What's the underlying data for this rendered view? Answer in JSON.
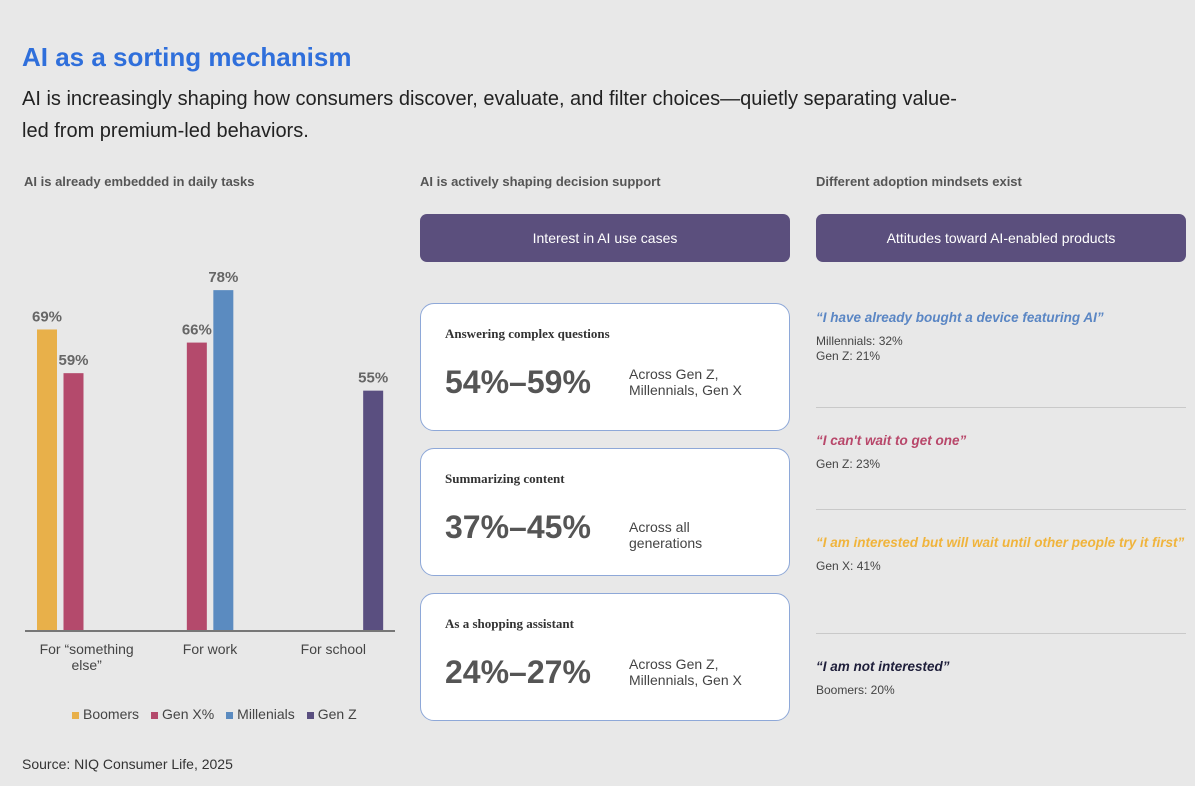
{
  "header": {
    "title": "AI as a sorting mechanism",
    "subtitle": "AI is increasingly shaping how consumers discover, evaluate, and filter choices—quietly separating value-led from premium-led behaviors."
  },
  "chart_data": {
    "type": "bar",
    "title": "AI is already embedded in daily tasks",
    "categories": [
      "For “something else”",
      "For work",
      "For school"
    ],
    "series": [
      {
        "name": "Boomers",
        "color": "#e8b04a",
        "values": [
          69,
          null,
          null
        ],
        "value_labels": [
          "69%",
          null,
          null
        ]
      },
      {
        "name": "Gen X%",
        "color": "#b44a6c",
        "values": [
          59,
          66,
          null
        ],
        "value_labels": [
          "59%",
          "66%",
          null
        ]
      },
      {
        "name": "Millenials",
        "color": "#5b8bc0",
        "values": [
          null,
          78,
          null
        ],
        "value_labels": [
          null,
          "78%",
          null
        ]
      },
      {
        "name": "Gen Z",
        "color": "#5a4f80",
        "values": [
          null,
          null,
          55
        ],
        "value_labels": [
          null,
          null,
          "55%"
        ]
      }
    ],
    "ylim": [
      0,
      100
    ],
    "grid": false,
    "legend": "bottom"
  },
  "decision": {
    "title": "AI is actively shaping decision support",
    "banner": "Interest in AI use cases",
    "cards": [
      {
        "title": "Answering complex questions",
        "range": "54%–59%",
        "note": "Across Gen Z, Millennials, Gen X"
      },
      {
        "title": "Summarizing content",
        "range": "37%–45%",
        "note": "Across all generations"
      },
      {
        "title": "As a shopping assistant",
        "range": "24%–27%",
        "note": "Across Gen Z, Millennials, Gen X"
      }
    ]
  },
  "attitudes": {
    "title": "Different adoption mindsets exist",
    "banner": "Attitudes toward AI-enabled products",
    "quotes": [
      {
        "quote": "“I have already bought a device featuring AI”",
        "color": "#5a86c4",
        "details": [
          "Millennials: 32%",
          "Gen Z: 21%"
        ]
      },
      {
        "quote": "“I can't wait to get one”",
        "color": "#b8476a",
        "details": [
          "Gen Z: 23%"
        ]
      },
      {
        "quote": "“I am interested but will wait until other people try it first”",
        "color": "#f0b43c",
        "details": [
          "Gen X: 41%"
        ]
      },
      {
        "quote": "“I am not interested”",
        "color": "#1e1e3a",
        "details": [
          "Boomers: 20%"
        ]
      }
    ]
  },
  "source": "Source: NIQ Consumer Life, 2025"
}
